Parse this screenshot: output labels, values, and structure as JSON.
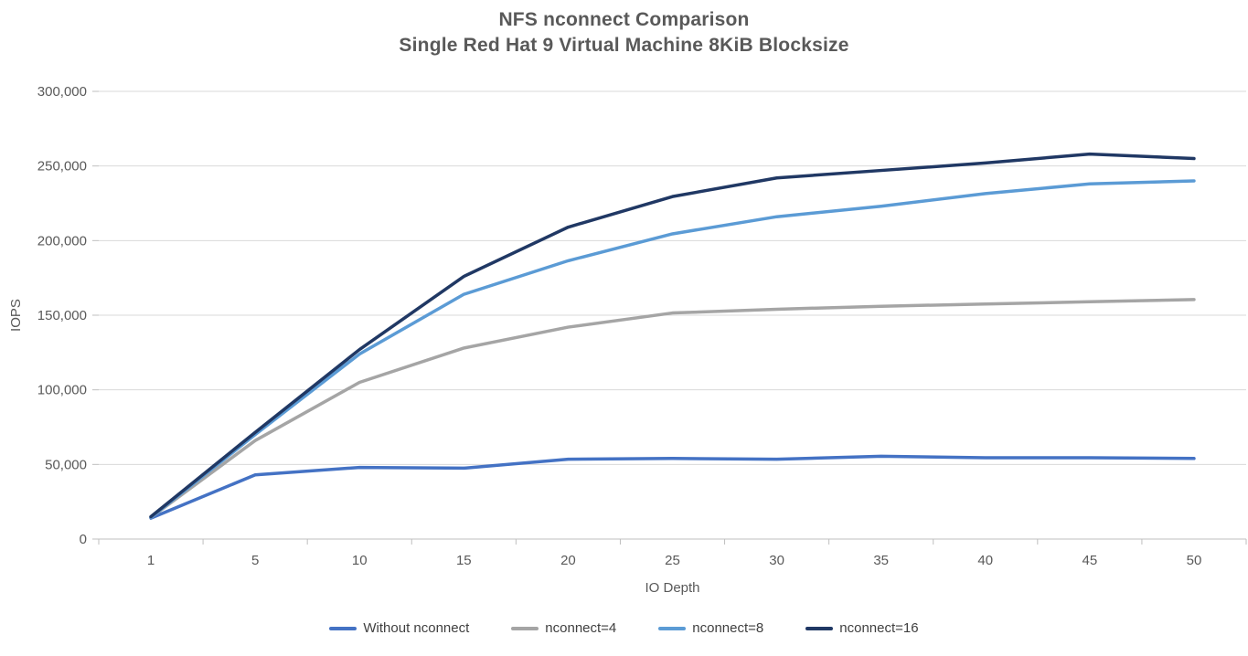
{
  "chart_data": {
    "type": "line",
    "title": "NFS nconnect Comparison",
    "subtitle": "Single Red Hat 9 Virtual Machine 8KiB Blocksize",
    "xlabel": "IO Depth",
    "ylabel": "IOPS",
    "categories": [
      1,
      5,
      10,
      15,
      20,
      25,
      30,
      35,
      40,
      45,
      50
    ],
    "series": [
      {
        "name": "Without nconnect",
        "color": "#4472C4",
        "values": [
          14000,
          43000,
          48000,
          47500,
          53500,
          54000,
          53500,
          55500,
          54500,
          54500,
          54000
        ]
      },
      {
        "name": "nconnect=4",
        "color": "#A5A5A5",
        "values": [
          14500,
          66000,
          105000,
          128000,
          142000,
          151500,
          154000,
          156000,
          157500,
          159000,
          160500
        ]
      },
      {
        "name": "nconnect=8",
        "color": "#5B9BD5",
        "values": [
          14500,
          70000,
          124000,
          164000,
          186500,
          204500,
          216000,
          223000,
          231500,
          238000,
          240000
        ]
      },
      {
        "name": "nconnect=16",
        "color": "#203864",
        "values": [
          15000,
          71500,
          127000,
          176000,
          209000,
          229500,
          242000,
          247000,
          252000,
          258000,
          255000
        ]
      }
    ],
    "ylim": [
      0,
      300000
    ],
    "ytick_step": 50000,
    "ytick_labels": [
      "0",
      "50,000",
      "100,000",
      "150,000",
      "200,000",
      "250,000",
      "300,000"
    ],
    "grid": "horizontal",
    "legend_position": "bottom",
    "styles": {
      "gridline_color": "#D9D9D9",
      "axis_color": "#BFBFBF",
      "tick_label_color": "#595959",
      "axis_title_color": "#595959",
      "line_width": 3.5
    }
  }
}
